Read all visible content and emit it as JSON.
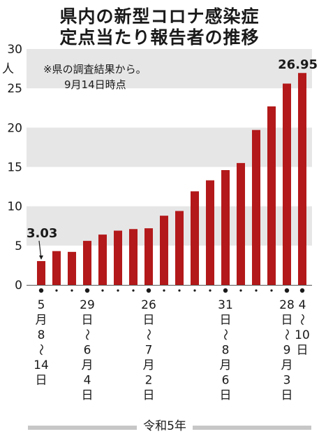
{
  "title_line1": "県内の新型コロナ感染症",
  "title_line2": "定点当たり報告者の推移",
  "note_line1": "※県の調査結果から。",
  "note_line2": "9月14日時点",
  "era_label": "令和5年",
  "chart_data": {
    "type": "bar",
    "categories": [
      "5月8日～14日",
      "",
      "",
      "29日～6月4日",
      "",
      "",
      "",
      "26日～7月2日",
      "",
      "",
      "",
      "",
      "31日～8月6日",
      "",
      "",
      "",
      "28日～9月3日",
      "4～10日"
    ],
    "values": [
      3.03,
      4.3,
      4.2,
      5.6,
      6.4,
      6.9,
      7.1,
      7.2,
      8.8,
      9.4,
      11.9,
      13.3,
      14.6,
      15.5,
      19.7,
      22.7,
      25.6,
      26.95
    ],
    "ylim": [
      0,
      30
    ],
    "yticks": [
      0,
      5,
      10,
      15,
      20,
      25,
      30
    ],
    "ytick_labels": [
      "0",
      "5",
      "10",
      "15",
      "20",
      "25",
      "30"
    ],
    "y_unit": "人",
    "data_labels": {
      "first": "3.03",
      "last": "26.95"
    },
    "bar_color": "#b3191a",
    "grid_band_color": "#e6e6e6",
    "dot_markers": [
      true,
      false,
      false,
      true,
      false,
      false,
      false,
      true,
      false,
      false,
      false,
      false,
      true,
      false,
      false,
      false,
      true,
      true
    ],
    "x_labels": [
      {
        "index": 0,
        "chars": [
          "5",
          "月",
          "8",
          "～",
          "14",
          "日"
        ]
      },
      {
        "index": 3,
        "chars": [
          "29",
          "日",
          "～",
          "6",
          "月",
          "4",
          "日"
        ]
      },
      {
        "index": 7,
        "chars": [
          "26",
          "日",
          "～",
          "7",
          "月",
          "2",
          "日"
        ]
      },
      {
        "index": 12,
        "chars": [
          "31",
          "日",
          "～",
          "8",
          "月",
          "6",
          "日"
        ]
      },
      {
        "index": 16,
        "chars": [
          "28",
          "日",
          "～",
          "9",
          "月",
          "3",
          "日"
        ]
      },
      {
        "index": 17,
        "chars": [
          "4",
          "～",
          "10",
          "日"
        ]
      }
    ]
  }
}
